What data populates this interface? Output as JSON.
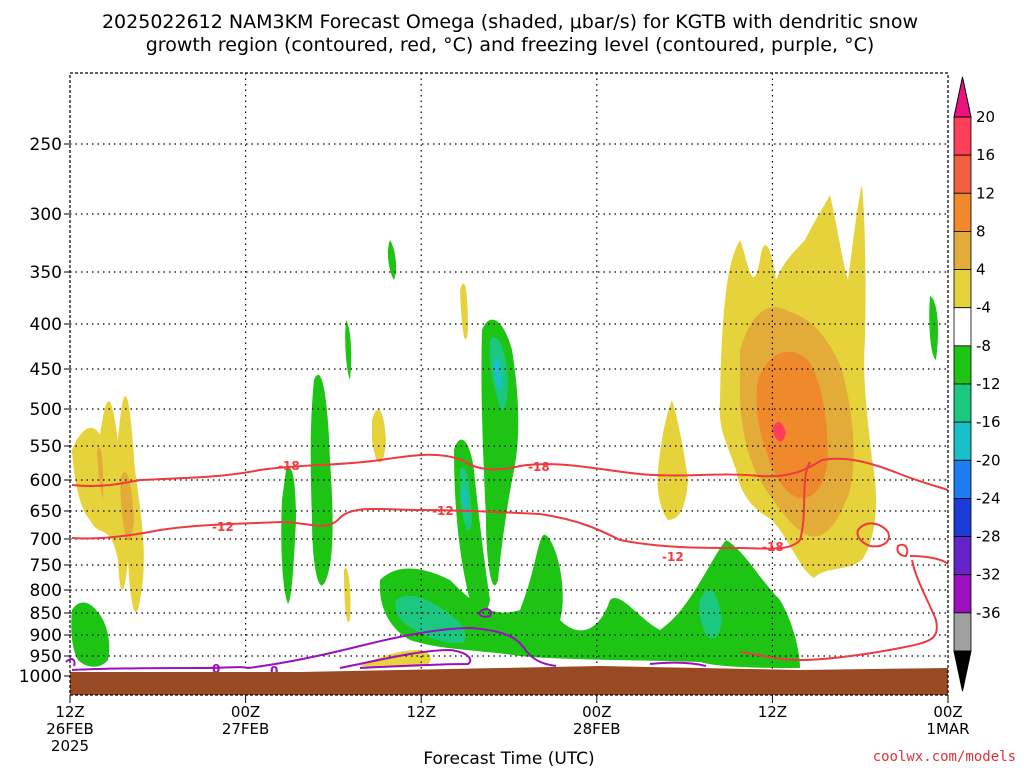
{
  "title": {
    "line1": "2025022612 NAM3KM Forecast Omega (shaded, μbar/s) for KGTB with dendritic snow",
    "line2": "growth region (contoured, red, °C) and freezing level (contoured, purple, °C)"
  },
  "credit": "coolwx.com/models",
  "chart_data": {
    "type": "time-height cross section",
    "title": "2025022612 NAM3KM Forecast Omega (shaded, μbar/s) for KGTB with dendritic snow growth region (contoured, red, °C) and freezing level (contoured, purple, °C)",
    "xlabel": "Forecast Time (UTC)",
    "ylabel": "",
    "x_range_hours": [
      0,
      60
    ],
    "x_ticks": [
      {
        "hour": 0,
        "lines": [
          "12Z",
          "26FEB",
          "2025"
        ]
      },
      {
        "hour": 12,
        "lines": [
          "00Z",
          "27FEB"
        ]
      },
      {
        "hour": 24,
        "lines": [
          "12Z"
        ]
      },
      {
        "hour": 36,
        "lines": [
          "00Z",
          "28FEB"
        ]
      },
      {
        "hour": 48,
        "lines": [
          "12Z"
        ]
      },
      {
        "hour": 60,
        "lines": [
          "00Z",
          "1MAR"
        ]
      }
    ],
    "pressure_levels": [
      250,
      300,
      350,
      400,
      450,
      500,
      550,
      600,
      650,
      700,
      750,
      800,
      850,
      900,
      950,
      1000
    ],
    "grid": true,
    "colorbar": {
      "labels": [
        "20",
        "16",
        "12",
        "8",
        "4",
        "-4",
        "-8",
        "-12",
        "-16",
        "-20",
        "-24",
        "-28",
        "-32",
        "-36"
      ],
      "colors": [
        "#ff3e5a",
        "#f06040",
        "#ee8a2c",
        "#e3ac38",
        "#e6d23a",
        "#ffffff",
        "#1dc414",
        "#1cc880",
        "#19c0c8",
        "#1c7cf0",
        "#1c3cd8",
        "#6424c8",
        "#9c10c0",
        "#a0a0a0"
      ],
      "top_arrow_color": "#e8137e",
      "bottom_arrow_color": "#000000"
    },
    "dgz_contours": [
      {
        "value": -18,
        "label": "-18",
        "color": "#ee3a40"
      },
      {
        "value": -12,
        "label": "-12",
        "color": "#ee3a40"
      }
    ],
    "freezing_contours": [
      {
        "value": 0,
        "label": "0",
        "color": "#9a10c0"
      }
    ],
    "terrain_color": "#9a4a22"
  }
}
